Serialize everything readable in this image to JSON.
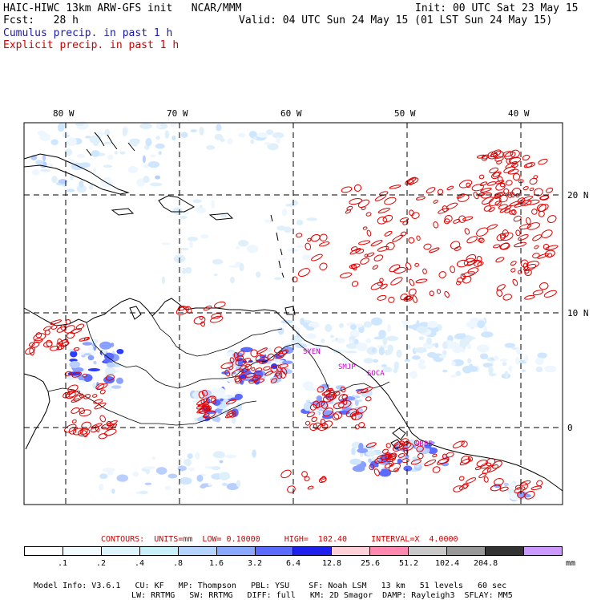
{
  "header": {
    "model": "HAIC-HIWC 13km ARW-GFS init   NCAR/MMM",
    "init": "Init: 00 UTC Sat 23 May 15",
    "fcst": "Fcst:   28 h",
    "valid": "Valid: 04 UTC Sun 24 May 15 (01 LST Sun 24 May 15)",
    "field_cu": "Cumulus precip. in past 1 h",
    "field_ex": "Explicit precip. in past 1 h"
  },
  "map": {
    "lon_labels": [
      "80 W",
      "70 W",
      "60 W",
      "50 W",
      "40 W"
    ],
    "lat_labels": [
      "20 N",
      "10 N",
      "0"
    ],
    "place_labels": [
      "SYEN",
      "SMJP",
      "SOCA",
      "SBBE"
    ],
    "colors": {
      "cumulus": "#4a5cff",
      "explicit": "#e00000",
      "coast": "#000000",
      "grid": "#000000"
    }
  },
  "contours": {
    "label": "CONTOURS:  UNITS=mm  LOW= 0.10000     HIGH=  102.40     INTERVAL=X  4.0000"
  },
  "colorbar": {
    "colors": [
      "#ffffff",
      "#f2fbff",
      "#ddf5fb",
      "#c8f0f8",
      "#b4d4ff",
      "#8aa8ff",
      "#5b6bff",
      "#2020ee",
      "#ffd0d8",
      "#ff88b0",
      "#c8c8c8",
      "#999999",
      "#333333",
      "#cc99ff"
    ],
    "ticks": [
      ".1",
      ".2",
      ".4",
      ".8",
      "1.6",
      "3.2",
      "6.4",
      "12.8",
      "25.6",
      "51.2",
      "102.4",
      "204.8"
    ],
    "unit": "mm"
  },
  "footer": {
    "line1": [
      "Model Info: V3.6.1",
      "CU: KF",
      "MP: Thompson",
      "PBL: YSU",
      "SF: Noah LSM",
      "13 km",
      "51 levels",
      "60 sec"
    ],
    "line2": [
      "LW: RRTMG",
      "SW: RRTMG",
      "DIFF: full",
      "KM: 2D Smagor",
      "DAMP: Rayleigh3",
      "SFLAY: MM5"
    ]
  }
}
